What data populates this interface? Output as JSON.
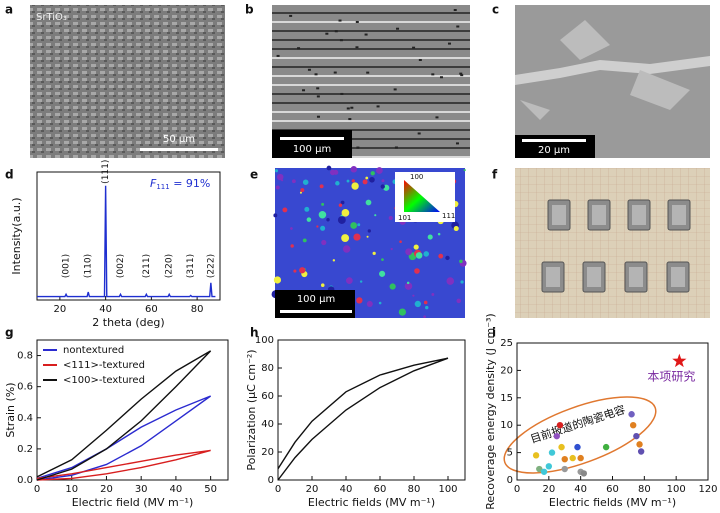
{
  "panel_labels": [
    "a",
    "b",
    "c",
    "d",
    "e",
    "f",
    "g",
    "h",
    "i"
  ],
  "images": {
    "a": {
      "caption": "SrTiO₃",
      "scale_bar": "50 μm"
    },
    "b": {
      "scale_bar": "100 μm"
    },
    "c": {
      "scale_bar": "20 μm"
    },
    "e": {
      "scale_bar": "100 μm",
      "key_labels": [
        "100",
        "101",
        "111"
      ]
    }
  },
  "chart_data": [
    {
      "type": "line",
      "x_label": "2 theta (deg)",
      "y_label": "Intensity(a.u.)",
      "annotation": {
        "symbol": "F",
        "subscript": "111",
        "text": " = 91%"
      },
      "x": [
        10,
        22.2,
        22.7,
        23.2,
        31.9,
        32.4,
        32.9,
        39.5,
        40,
        40.5,
        46,
        46.5,
        47,
        57.3,
        57.8,
        58.3,
        67.3,
        67.8,
        68.3,
        76.7,
        77.2,
        77.7,
        85.5,
        86,
        86.5,
        88
      ],
      "series": [
        {
          "color": "#1f2fd0",
          "values": [
            3,
            3,
            5,
            3,
            3,
            7,
            3,
            3,
            100,
            3,
            3,
            5,
            3,
            3,
            5,
            3,
            3,
            5,
            3,
            3,
            4,
            3,
            3,
            15,
            3,
            3
          ]
        }
      ],
      "peak_labels": [
        "(001)",
        "(110)",
        "(111)",
        "(002)",
        "(211)",
        "(220)",
        "(311)",
        "(222)"
      ],
      "peak_positions": [
        22.7,
        32.4,
        40,
        46.5,
        57.8,
        67.8,
        77.2,
        86
      ],
      "xlim": [
        10,
        90
      ],
      "xticks": [
        20,
        40,
        60,
        80
      ],
      "ylim": [
        0,
        112
      ]
    },
    {
      "type": "line",
      "x_label": "Electric field (MV m⁻¹)",
      "y_label": "Strain (%)",
      "legend": "upper left",
      "series": [
        {
          "name": "nontextured",
          "color": "#2b2bd0",
          "x": [
            0,
            10,
            20,
            30,
            40,
            50,
            40,
            30,
            20,
            10,
            0
          ],
          "values": [
            0,
            0.03,
            0.1,
            0.22,
            0.38,
            0.54,
            0.45,
            0.34,
            0.2,
            0.08,
            0.01
          ]
        },
        {
          "name": "<111>-textured",
          "color": "#d81f1f",
          "x": [
            0,
            10,
            20,
            30,
            40,
            50,
            40,
            30,
            20,
            10,
            0
          ],
          "values": [
            0,
            0.01,
            0.04,
            0.08,
            0.13,
            0.19,
            0.16,
            0.12,
            0.08,
            0.04,
            0.01
          ]
        },
        {
          "name": "<100>-textured",
          "color": "#111111",
          "x": [
            0,
            10,
            20,
            30,
            40,
            50,
            40,
            30,
            20,
            10,
            0
          ],
          "values": [
            0,
            0.07,
            0.2,
            0.38,
            0.6,
            0.83,
            0.7,
            0.52,
            0.32,
            0.13,
            0.02
          ]
        }
      ],
      "xlim": [
        0,
        55
      ],
      "xticks": [
        0,
        10,
        20,
        30,
        40,
        50
      ],
      "ylim": [
        0,
        0.9
      ],
      "yticks": [
        {
          "value": 0,
          "label": "0.0"
        },
        0.2,
        0.4,
        0.6,
        0.8
      ]
    },
    {
      "type": "line",
      "x_label": "Electric fields (MV m⁻¹)",
      "y_label": "Polarization (μC cm⁻²)",
      "series": [
        {
          "color": "#111111",
          "x": [
            0,
            10,
            20,
            40,
            60,
            80,
            100,
            80,
            60,
            40,
            20,
            10,
            0
          ],
          "values": [
            0,
            16,
            29,
            50,
            66,
            78,
            87,
            82,
            75,
            63,
            42,
            27,
            8
          ]
        }
      ],
      "xlim": [
        0,
        110
      ],
      "xticks": [
        0,
        20,
        40,
        60,
        80,
        100
      ],
      "ylim": [
        0,
        100
      ],
      "yticks": [
        0,
        20,
        40,
        60,
        80,
        100
      ]
    },
    {
      "type": "scatter",
      "x_label": "Electric fields (MV m⁻¹)",
      "y_label": "Recoverage energy density (J cm⁻³)",
      "ellipse_label": "目前报道的陶瓷电容",
      "series": [
        {
          "marker": "circle",
          "x": [
            12,
            14,
            17,
            20,
            22,
            25,
            27,
            28,
            30,
            30,
            35,
            38,
            40,
            40,
            42,
            56,
            72,
            73,
            75,
            77,
            78
          ],
          "values": [
            4.5,
            2,
            1.5,
            2.5,
            5,
            8,
            10,
            6,
            3.8,
            2,
            4,
            6,
            1.5,
            4,
            1.2,
            6,
            12,
            10,
            8,
            6.5,
            5.2
          ],
          "colors": [
            "#e8c020",
            "#7fb07f",
            "#40c8d8",
            "#40c8d8",
            "#40c8d8",
            "#9050c0",
            "#d82020",
            "#e8c020",
            "#e08020",
            "#999999",
            "#e8c020",
            "#3050d0",
            "#999999",
            "#e08020",
            "#888888",
            "#40b040",
            "#7060c0",
            "#e08020",
            "#6050b0",
            "#e08020",
            "#6050b0"
          ]
        },
        {
          "marker": "star",
          "name": "本项研究",
          "color": "#e01818",
          "x": [
            102
          ],
          "values": [
            21.7
          ]
        }
      ],
      "xlim": [
        0,
        120
      ],
      "xticks": [
        0,
        20,
        40,
        60,
        80,
        100,
        120
      ],
      "ylim": [
        0,
        25
      ],
      "yticks": [
        0,
        5,
        10,
        15,
        20,
        25
      ]
    }
  ]
}
